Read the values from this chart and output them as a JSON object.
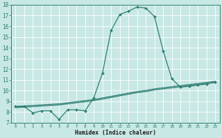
{
  "line1_x": [
    0,
    1,
    2,
    3,
    4,
    5,
    6,
    7,
    8,
    9,
    10,
    11,
    12,
    13,
    14,
    15,
    16,
    17,
    18,
    19,
    20,
    21,
    22,
    23
  ],
  "line1_y": [
    8.5,
    8.5,
    7.9,
    8.1,
    8.1,
    7.3,
    8.2,
    8.2,
    8.1,
    9.3,
    11.6,
    15.6,
    17.1,
    17.4,
    17.8,
    17.7,
    16.9,
    13.7,
    11.1,
    10.3,
    10.4,
    10.5,
    10.6,
    10.8
  ],
  "line2_x": [
    0,
    1,
    2,
    3,
    4,
    5,
    6,
    7,
    8,
    9,
    10,
    11,
    12,
    13,
    14,
    15,
    16,
    17,
    18,
    19,
    20,
    21,
    22,
    23
  ],
  "line2_y": [
    8.5,
    8.55,
    8.6,
    8.65,
    8.7,
    8.75,
    8.85,
    8.95,
    9.05,
    9.15,
    9.3,
    9.45,
    9.6,
    9.75,
    9.9,
    10.0,
    10.15,
    10.25,
    10.35,
    10.45,
    10.55,
    10.65,
    10.75,
    10.85
  ],
  "line3_x": [
    0,
    1,
    2,
    3,
    4,
    5,
    6,
    7,
    8,
    9,
    10,
    11,
    12,
    13,
    14,
    15,
    16,
    17,
    18,
    19,
    20,
    21,
    22,
    23
  ],
  "line3_y": [
    8.4,
    8.45,
    8.5,
    8.55,
    8.6,
    8.65,
    8.75,
    8.85,
    8.95,
    9.05,
    9.2,
    9.35,
    9.5,
    9.65,
    9.8,
    9.9,
    10.05,
    10.15,
    10.25,
    10.35,
    10.45,
    10.55,
    10.65,
    10.75
  ],
  "color": "#2e7d72",
  "bg_color": "#c8e8e5",
  "grid_color": "#b0d8d4",
  "xlabel": "Humidex (Indice chaleur)",
  "xlim": [
    -0.5,
    23.5
  ],
  "ylim": [
    7,
    18
  ],
  "yticks": [
    7,
    8,
    9,
    10,
    11,
    12,
    13,
    14,
    15,
    16,
    17,
    18
  ],
  "xticks": [
    0,
    1,
    2,
    3,
    4,
    5,
    6,
    7,
    8,
    9,
    10,
    11,
    12,
    13,
    14,
    15,
    16,
    17,
    18,
    19,
    20,
    21,
    22,
    23
  ],
  "markersize": 2.0,
  "linewidth": 0.9
}
